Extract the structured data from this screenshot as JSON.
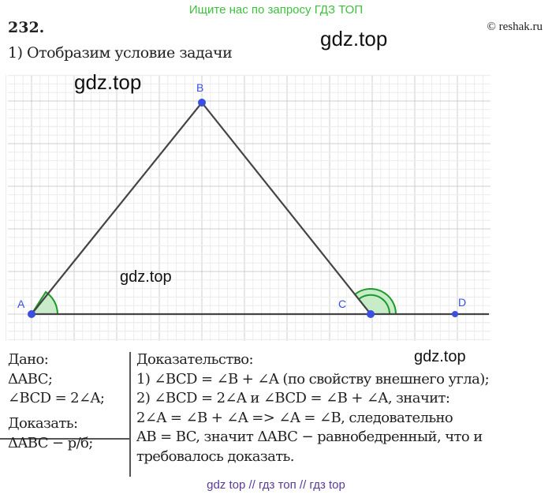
{
  "banner": "Ищите нас по запросу ГДЗ ТОП",
  "problem_number": "232.",
  "copyright": "© reshak.ru",
  "watermarks": [
    "gdz.top",
    "gdz.top",
    "gdz.top",
    "gdz.top"
  ],
  "step1": "1) Отобразим условие задачи",
  "figure": {
    "points": [
      "A",
      "B",
      "C",
      "D"
    ],
    "point_color": "#3b4fe0",
    "line_color": "#444444",
    "angle_color": "#1a9a2a"
  },
  "given": {
    "title": "Дано:",
    "lines": [
      "ΔABC;",
      "∠BCD = 2∠A;"
    ]
  },
  "prove": {
    "title": "Доказать:",
    "lines": [
      "ΔABC − р/б;"
    ]
  },
  "proof": {
    "title": "Доказательство:",
    "lines": [
      "1) ∠BCD = ∠B + ∠A (по свойству внешнего угла);",
      "2) ∠BCD = 2∠A и ∠BCD = ∠B + ∠A, значит:",
      "2∠A = ∠B + ∠A => ∠A = ∠B, следовательно",
      "AB = BC, значит ΔABC − равнобедренный, что и",
      "требовалось доказать."
    ]
  },
  "footer": "gdz top  //  гдз топ  //  гдз top"
}
